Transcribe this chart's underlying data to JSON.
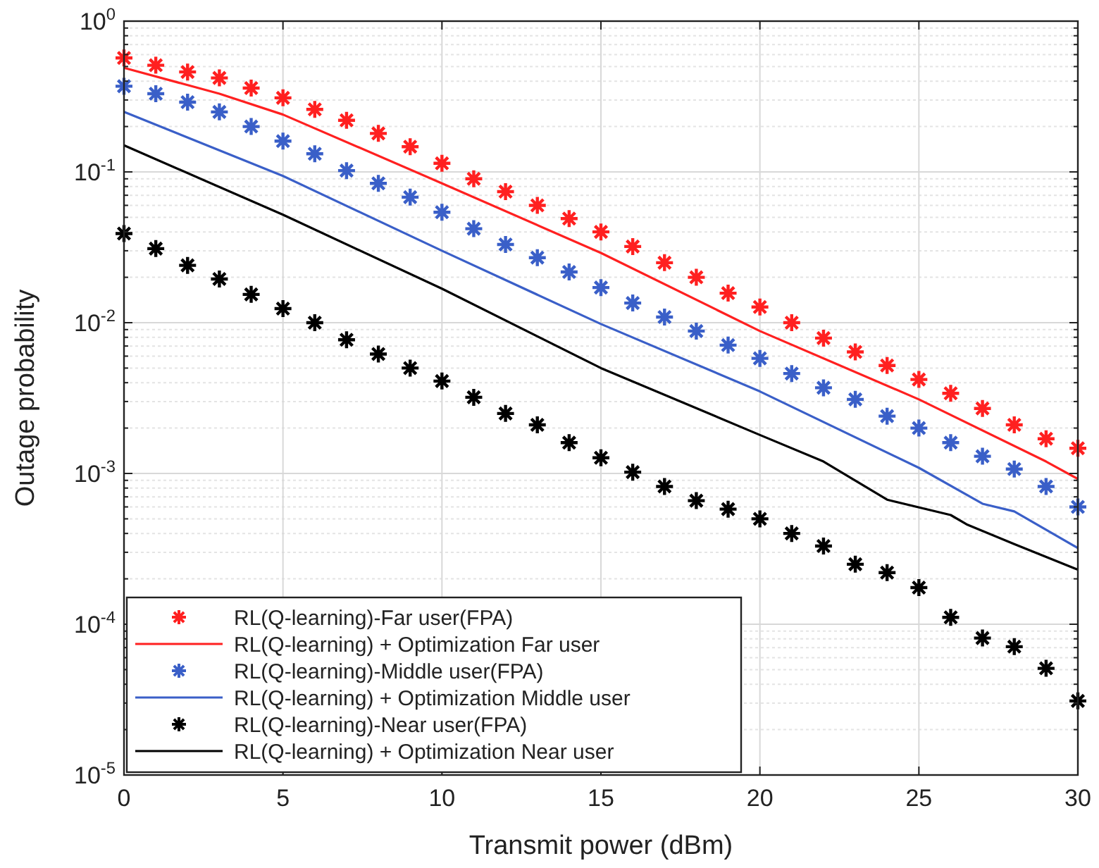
{
  "chart_data": {
    "type": "line",
    "xlabel": "Transmit power (dBm)",
    "ylabel": "Outage probability",
    "log": "y",
    "grid": true,
    "legend": "bottom left",
    "xlim": [
      0,
      30
    ],
    "xticks": [
      0,
      5,
      10,
      15,
      20,
      25,
      30
    ],
    "ylim": [
      1e-05,
      1
    ],
    "yticks": [
      {
        "value": 1e-05,
        "label": "10$^{-5}$"
      },
      {
        "value": 2e-05,
        "label": null
      },
      {
        "value": 3e-05,
        "label": null
      },
      {
        "value": 4e-05,
        "label": null
      },
      {
        "value": 5e-05,
        "label": null
      },
      {
        "value": 6e-05,
        "label": null
      },
      {
        "value": 7e-05,
        "label": null
      },
      {
        "value": 8e-05,
        "label": null
      },
      {
        "value": 9e-05,
        "label": null
      },
      {
        "value": 0.0001,
        "label": "10$^{-4}$"
      },
      {
        "value": 0.0002,
        "label": null
      },
      {
        "value": 0.0003,
        "label": null
      },
      {
        "value": 0.0004,
        "label": null
      },
      {
        "value": 0.0005,
        "label": null
      },
      {
        "value": 0.0006,
        "label": null
      },
      {
        "value": 0.0007,
        "label": null
      },
      {
        "value": 0.0008,
        "label": null
      },
      {
        "value": 0.0009,
        "label": null
      },
      {
        "value": 0.001,
        "label": "10$^{-3}$"
      },
      {
        "value": 0.002,
        "label": null
      },
      {
        "value": 0.003,
        "label": null
      },
      {
        "value": 0.004,
        "label": null
      },
      {
        "value": 0.005,
        "label": null
      },
      {
        "value": 0.006,
        "label": null
      },
      {
        "value": 0.007,
        "label": null
      },
      {
        "value": 0.008,
        "label": null
      },
      {
        "value": 0.009,
        "label": null
      },
      {
        "value": 0.01,
        "label": "10$^{-2}$"
      },
      {
        "value": 0.02,
        "label": null
      },
      {
        "value": 0.03,
        "label": null
      },
      {
        "value": 0.04,
        "label": null
      },
      {
        "value": 0.05,
        "label": null
      },
      {
        "value": 0.06,
        "label": null
      },
      {
        "value": 0.07,
        "label": null
      },
      {
        "value": 0.08,
        "label": null
      },
      {
        "value": 0.09,
        "label": null
      },
      {
        "value": 0.1,
        "label": "10$^{-1}$"
      },
      {
        "value": 0.2,
        "label": null
      },
      {
        "value": 0.3,
        "label": null
      },
      {
        "value": 0.4,
        "label": null
      },
      {
        "value": 0.5,
        "label": null
      },
      {
        "value": 0.6,
        "label": null
      },
      {
        "value": 0.7,
        "label": null
      },
      {
        "value": 0.8,
        "label": null
      },
      {
        "value": 0.9,
        "label": null
      },
      {
        "value": 1,
        "label": "10$^{0}$"
      }
    ],
    "series": [
      {
        "name": "RL(Q-learning)-Far user(FPA)",
        "type": "scatter",
        "marker": "cross",
        "color": "#ff2020",
        "x": [
          0,
          1,
          2,
          3,
          4,
          5,
          6,
          7,
          8,
          9,
          10,
          11,
          12,
          13,
          14,
          15,
          16,
          17,
          18,
          19,
          20,
          21,
          22,
          23,
          24,
          25,
          26,
          27,
          28,
          29,
          30
        ],
        "values": [
          0.57,
          0.51,
          0.46,
          0.42,
          0.36,
          0.31,
          0.26,
          0.22,
          0.18,
          0.147,
          0.114,
          0.09,
          0.074,
          0.06,
          0.049,
          0.04,
          0.032,
          0.025,
          0.02,
          0.0157,
          0.0127,
          0.01,
          0.0079,
          0.0064,
          0.0052,
          0.0042,
          0.0034,
          0.0027,
          0.0021,
          0.0017,
          0.00147
        ]
      },
      {
        "name": "RL(Q-learning) + Optimization Far user",
        "color": "#ff2020",
        "x": [
          0,
          3,
          5,
          10,
          15,
          20,
          25,
          29,
          30
        ],
        "values": [
          0.49,
          0.33,
          0.24,
          0.084,
          0.029,
          0.0088,
          0.0031,
          0.0012,
          0.00092
        ]
      },
      {
        "name": "RL(Q-learning)-Middle user(FPA)",
        "type": "scatter",
        "marker": "cross",
        "color": "#3a5fc8",
        "x": [
          0,
          1,
          2,
          3,
          4,
          5,
          6,
          7,
          8,
          9,
          10,
          11,
          12,
          13,
          14,
          15,
          16,
          17,
          18,
          19,
          20,
          21,
          22,
          23,
          24,
          25,
          26,
          27,
          28,
          29,
          30
        ],
        "values": [
          0.37,
          0.33,
          0.29,
          0.25,
          0.2,
          0.16,
          0.132,
          0.102,
          0.084,
          0.068,
          0.054,
          0.042,
          0.033,
          0.027,
          0.0217,
          0.0171,
          0.0135,
          0.0109,
          0.0088,
          0.0071,
          0.0058,
          0.0046,
          0.0037,
          0.0031,
          0.0024,
          0.002,
          0.0016,
          0.0013,
          0.00107,
          0.00082,
          0.0006
        ]
      },
      {
        "name": "RL(Q-learning) + Optimization Middle user",
        "color": "#3a5fc8",
        "x": [
          0,
          5,
          10,
          15,
          20,
          25,
          27,
          28,
          30
        ],
        "values": [
          0.25,
          0.094,
          0.03,
          0.0098,
          0.0035,
          0.00109,
          0.00063,
          0.00056,
          0.00032
        ]
      },
      {
        "name": "RL(Q-learning)-Near user(FPA)",
        "type": "scatter",
        "marker": "cross",
        "color": "#000000",
        "x": [
          0,
          1,
          2,
          3,
          4,
          5,
          6,
          7,
          8,
          9,
          10,
          11,
          12,
          13,
          14,
          15,
          16,
          17,
          18,
          19,
          20,
          21,
          22,
          23,
          24,
          25,
          26,
          27,
          28,
          29,
          30
        ],
        "values": [
          0.039,
          0.031,
          0.024,
          0.0195,
          0.0154,
          0.0124,
          0.01,
          0.0077,
          0.0062,
          0.005,
          0.0041,
          0.0032,
          0.0025,
          0.0021,
          0.0016,
          0.00127,
          0.00102,
          0.00082,
          0.00066,
          0.00058,
          0.0005,
          0.0004,
          0.00033,
          0.00025,
          0.00022,
          0.000175,
          0.000111,
          8.1e-05,
          7.1e-05,
          5.1e-05,
          3.1e-05
        ]
      },
      {
        "name": "RL(Q-learning) + Optimization Near user",
        "color": "#000000",
        "x": [
          0,
          5,
          10,
          15,
          20,
          22,
          24,
          26,
          26.5,
          28,
          30
        ],
        "values": [
          0.15,
          0.052,
          0.0168,
          0.005,
          0.0018,
          0.0012,
          0.00067,
          0.00053,
          0.00046,
          0.00034,
          0.00023
        ]
      }
    ]
  }
}
